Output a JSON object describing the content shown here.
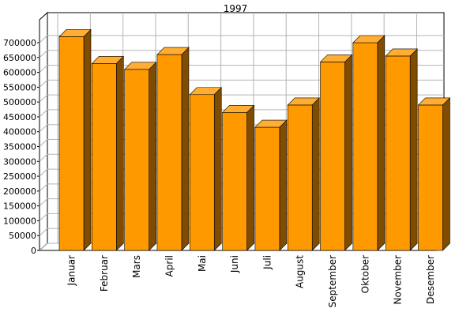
{
  "chart_data": {
    "type": "bar",
    "title": "1997",
    "xlabel": "",
    "ylabel": "",
    "categories": [
      "Januar",
      "Februar",
      "Mars",
      "April",
      "Mai",
      "Juni",
      "Juli",
      "August",
      "September",
      "Oktober",
      "November",
      "Desember"
    ],
    "values": [
      720000,
      630000,
      610000,
      660000,
      525000,
      465000,
      415000,
      490000,
      635000,
      700000,
      655000,
      490000
    ],
    "ylim": [
      0,
      700000
    ],
    "yticks": [
      "0",
      "50000",
      "100000",
      "150000",
      "200000",
      "250000",
      "300000",
      "350000",
      "400000",
      "450000",
      "500000",
      "550000",
      "600000",
      "650000",
      "700000"
    ],
    "grid": true,
    "bar_color": "#ff9900",
    "bar_side_color": "#7f4c00",
    "bar_top_color": "#ffad33",
    "grid_color": "#b3b3b3"
  }
}
